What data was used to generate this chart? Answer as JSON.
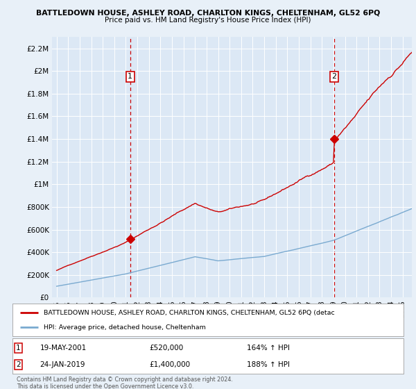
{
  "title": "BATTLEDOWN HOUSE, ASHLEY ROAD, CHARLTON KINGS, CHELTENHAM, GL52 6PQ",
  "subtitle": "Price paid vs. HM Land Registry's House Price Index (HPI)",
  "background_color": "#e8f0f8",
  "plot_bg_color": "#dce8f5",
  "red_color": "#cc0000",
  "blue_color": "#7aaad0",
  "ylim": [
    0,
    2300000
  ],
  "yticks": [
    0,
    200000,
    400000,
    600000,
    800000,
    1000000,
    1200000,
    1400000,
    1600000,
    1800000,
    2000000,
    2200000
  ],
  "ytick_labels": [
    "£0",
    "£200K",
    "£400K",
    "£600K",
    "£800K",
    "£1M",
    "£1.2M",
    "£1.4M",
    "£1.6M",
    "£1.8M",
    "£2M",
    "£2.2M"
  ],
  "xlim_start": 1994.6,
  "xlim_end": 2025.8,
  "marker1_x": 2001.38,
  "marker1_y": 520000,
  "marker1_label": "1",
  "marker1_date": "19-MAY-2001",
  "marker1_price": "£520,000",
  "marker1_hpi": "164% ↑ HPI",
  "marker2_x": 2019.07,
  "marker2_y": 1400000,
  "marker2_label": "2",
  "marker2_date": "24-JAN-2019",
  "marker2_price": "£1,400,000",
  "marker2_hpi": "188% ↑ HPI",
  "legend_red": "BATTLEDOWN HOUSE, ASHLEY ROAD, CHARLTON KINGS, CHELTENHAM, GL52 6PQ (detac",
  "legend_blue": "HPI: Average price, detached house, Cheltenham",
  "footer": "Contains HM Land Registry data © Crown copyright and database right 2024.\nThis data is licensed under the Open Government Licence v3.0."
}
